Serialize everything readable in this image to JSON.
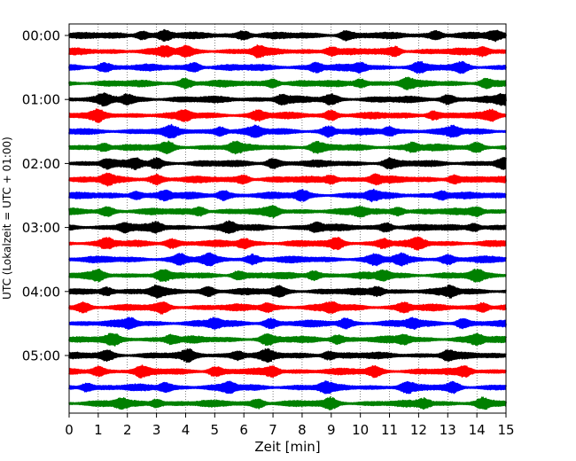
{
  "chart_data": {
    "type": "line",
    "chart_kind": "helicorder (seismogram drum plot)",
    "title": "",
    "xlabel": "Zeit  [min]",
    "ylabel": "UTC (Lokalzeit = UTC + 01:00)",
    "xlim": [
      0,
      15
    ],
    "x_ticks": [
      0,
      1,
      2,
      3,
      4,
      5,
      6,
      7,
      8,
      9,
      10,
      11,
      12,
      13,
      14,
      15
    ],
    "y_tick_labels": [
      "00:00",
      "01:00",
      "02:00",
      "03:00",
      "04:00",
      "05:00"
    ],
    "traces_per_hour": 4,
    "trace_count": 24,
    "trace_interval_minutes": 15,
    "trace_colors": [
      "#000000",
      "#ff0000",
      "#0000ff",
      "#008000"
    ],
    "grid": {
      "vertical": "dotted",
      "horizontal": false
    },
    "legend": "none",
    "series": [
      {
        "start": "00:00",
        "color": "#000000",
        "peak_minutes": [
          2.5,
          3.3,
          6.0,
          9.5,
          12.6,
          14.6
        ]
      },
      {
        "start": "00:15",
        "color": "#ff0000",
        "peak_minutes": [
          3.3,
          4.0,
          6.5,
          9.0,
          11.2,
          14.2
        ]
      },
      {
        "start": "00:30",
        "color": "#0000ff",
        "peak_minutes": [
          1.2,
          4.3,
          8.5,
          10.0,
          12.0,
          13.5
        ]
      },
      {
        "start": "00:45",
        "color": "#008000",
        "peak_minutes": [
          4.0,
          7.0,
          10.0,
          11.6,
          14.3
        ]
      },
      {
        "start": "01:00",
        "color": "#000000",
        "peak_minutes": [
          1.2,
          2.0,
          7.3,
          9.0,
          13.0,
          14.9
        ]
      },
      {
        "start": "01:15",
        "color": "#ff0000",
        "peak_minutes": [
          1.0,
          4.0,
          6.5,
          9.0,
          12.5,
          14.5
        ]
      },
      {
        "start": "01:30",
        "color": "#0000ff",
        "peak_minutes": [
          3.5,
          5.2,
          6.4,
          8.9,
          11.0,
          13.2
        ]
      },
      {
        "start": "01:45",
        "color": "#008000",
        "peak_minutes": [
          1.2,
          3.4,
          5.7,
          8.5,
          11.8,
          14.0
        ]
      },
      {
        "start": "02:00",
        "color": "#000000",
        "peak_minutes": [
          1.3,
          2.3,
          3.0,
          7.0,
          11.0,
          14.9
        ]
      },
      {
        "start": "02:15",
        "color": "#ff0000",
        "peak_minutes": [
          1.3,
          3.0,
          6.0,
          9.0,
          10.5,
          13.2
        ]
      },
      {
        "start": "02:30",
        "color": "#0000ff",
        "peak_minutes": [
          2.3,
          3.3,
          5.3,
          8.0,
          10.4,
          12.8
        ]
      },
      {
        "start": "02:45",
        "color": "#008000",
        "peak_minutes": [
          1.3,
          4.5,
          7.0,
          10.0,
          11.3,
          14.0
        ]
      },
      {
        "start": "03:00",
        "color": "#000000",
        "peak_minutes": [
          1.9,
          3.0,
          5.5,
          8.5,
          10.9,
          13.9
        ]
      },
      {
        "start": "03:15",
        "color": "#ff0000",
        "peak_minutes": [
          1.3,
          3.5,
          6.0,
          9.2,
          10.8,
          12.0
        ]
      },
      {
        "start": "03:30",
        "color": "#0000ff",
        "peak_minutes": [
          3.8,
          4.8,
          6.3,
          10.5,
          11.4,
          13.0
        ]
      },
      {
        "start": "03:45",
        "color": "#008000",
        "peak_minutes": [
          1.0,
          3.2,
          5.8,
          8.4,
          10.8,
          14.0
        ]
      },
      {
        "start": "04:00",
        "color": "#000000",
        "peak_minutes": [
          1.3,
          3.0,
          4.8,
          7.2,
          10.6,
          13.1
        ]
      },
      {
        "start": "04:15",
        "color": "#ff0000",
        "peak_minutes": [
          0.5,
          3.2,
          6.8,
          9.0,
          11.5,
          14.2
        ]
      },
      {
        "start": "04:30",
        "color": "#0000ff",
        "peak_minutes": [
          2.1,
          5.0,
          6.9,
          9.5,
          11.8,
          13.5
        ]
      },
      {
        "start": "04:45",
        "color": "#008000",
        "peak_minutes": [
          1.5,
          3.5,
          6.8,
          9.2,
          11.5,
          14.0
        ]
      },
      {
        "start": "05:00",
        "color": "#000000",
        "peak_minutes": [
          1.3,
          4.1,
          5.8,
          6.8,
          8.9,
          13.0
        ]
      },
      {
        "start": "05:15",
        "color": "#ff0000",
        "peak_minutes": [
          1.0,
          2.5,
          5.0,
          7.0,
          10.5,
          13.6
        ]
      },
      {
        "start": "05:30",
        "color": "#0000ff",
        "peak_minutes": [
          0.6,
          3.3,
          5.5,
          8.8,
          11.6,
          13.2
        ]
      },
      {
        "start": "05:45",
        "color": "#008000",
        "peak_minutes": [
          1.8,
          3.0,
          6.5,
          9.0,
          12.2,
          14.2
        ]
      }
    ]
  }
}
